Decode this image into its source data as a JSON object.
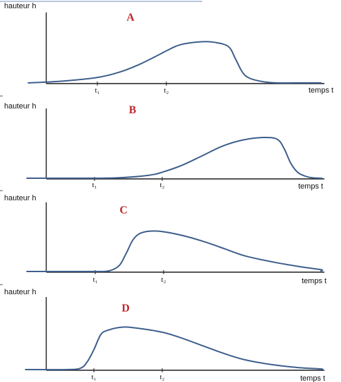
{
  "chart_data": [
    {
      "type": "line",
      "title": "A",
      "ylabel": "hauteur h",
      "xlabel": "temps t",
      "ticks": [
        "t₁",
        "t₂"
      ],
      "tick_positions": [
        1,
        2
      ],
      "x": [
        0,
        0.5,
        1,
        1.3,
        1.6,
        1.9,
        2,
        2.2,
        2.5,
        2.7,
        2.9,
        3.0,
        3.1,
        3.2,
        3.4,
        3.6,
        4.0,
        5.0
      ],
      "y": [
        0,
        0.03,
        0.09,
        0.17,
        0.3,
        0.47,
        0.53,
        0.63,
        0.68,
        0.67,
        0.6,
        0.4,
        0.18,
        0.08,
        0.02,
        0,
        0,
        0
      ],
      "xlim": [
        0,
        5
      ],
      "ylim": [
        0,
        1
      ],
      "color": "#3c5e8c"
    },
    {
      "type": "line",
      "title": "B",
      "ylabel": "hauteur h",
      "xlabel": "temps t",
      "ticks": [
        "t₁",
        "t₂"
      ],
      "tick_positions": [
        1,
        2
      ],
      "x": [
        0,
        0.5,
        1,
        1.4,
        1.8,
        2,
        2.3,
        2.6,
        2.9,
        3.2,
        3.5,
        3.7,
        3.8,
        3.9,
        4.0,
        4.1,
        4.2,
        4.4,
        5.0
      ],
      "y": [
        0,
        0,
        0,
        0.01,
        0.05,
        0.1,
        0.22,
        0.38,
        0.54,
        0.64,
        0.68,
        0.65,
        0.5,
        0.25,
        0.1,
        0.04,
        0.01,
        0,
        0
      ],
      "xlim": [
        0,
        5
      ],
      "ylim": [
        0,
        1
      ],
      "color": "#3c5e8c"
    },
    {
      "type": "line",
      "title": "C",
      "ylabel": "hauteur h",
      "xlabel": "temps t",
      "ticks": [
        "t₁",
        "t₂"
      ],
      "tick_positions": [
        1,
        2
      ],
      "x": [
        0,
        0.8,
        1,
        1.2,
        1.35,
        1.45,
        1.55,
        1.65,
        1.8,
        2.0,
        2.3,
        2.6,
        2.9,
        3.2,
        3.6,
        4.0,
        4.5,
        5.0
      ],
      "y": [
        0,
        0,
        0,
        0.01,
        0.1,
        0.3,
        0.53,
        0.64,
        0.68,
        0.67,
        0.6,
        0.5,
        0.38,
        0.26,
        0.16,
        0.08,
        0.03,
        0.01
      ],
      "xlim": [
        0,
        5
      ],
      "ylim": [
        0,
        1
      ],
      "color": "#3c5e8c"
    },
    {
      "type": "line",
      "title": "D",
      "ylabel": "hauteur h",
      "xlabel": "temps t",
      "ticks": [
        "t₁",
        "t₂"
      ],
      "tick_positions": [
        1,
        2
      ],
      "x": [
        0,
        0.6,
        0.8,
        0.9,
        1.0,
        1.1,
        1.2,
        1.4,
        1.6,
        2.0,
        2.3,
        2.6,
        2.9,
        3.2,
        3.6,
        4.0,
        4.5,
        5.0
      ],
      "y": [
        0,
        0,
        0.02,
        0.12,
        0.32,
        0.56,
        0.63,
        0.68,
        0.67,
        0.6,
        0.5,
        0.38,
        0.26,
        0.16,
        0.08,
        0.03,
        0.01,
        0
      ],
      "xlim": [
        0,
        5
      ],
      "ylim": [
        0,
        1
      ],
      "color": "#3c5e8c"
    }
  ]
}
